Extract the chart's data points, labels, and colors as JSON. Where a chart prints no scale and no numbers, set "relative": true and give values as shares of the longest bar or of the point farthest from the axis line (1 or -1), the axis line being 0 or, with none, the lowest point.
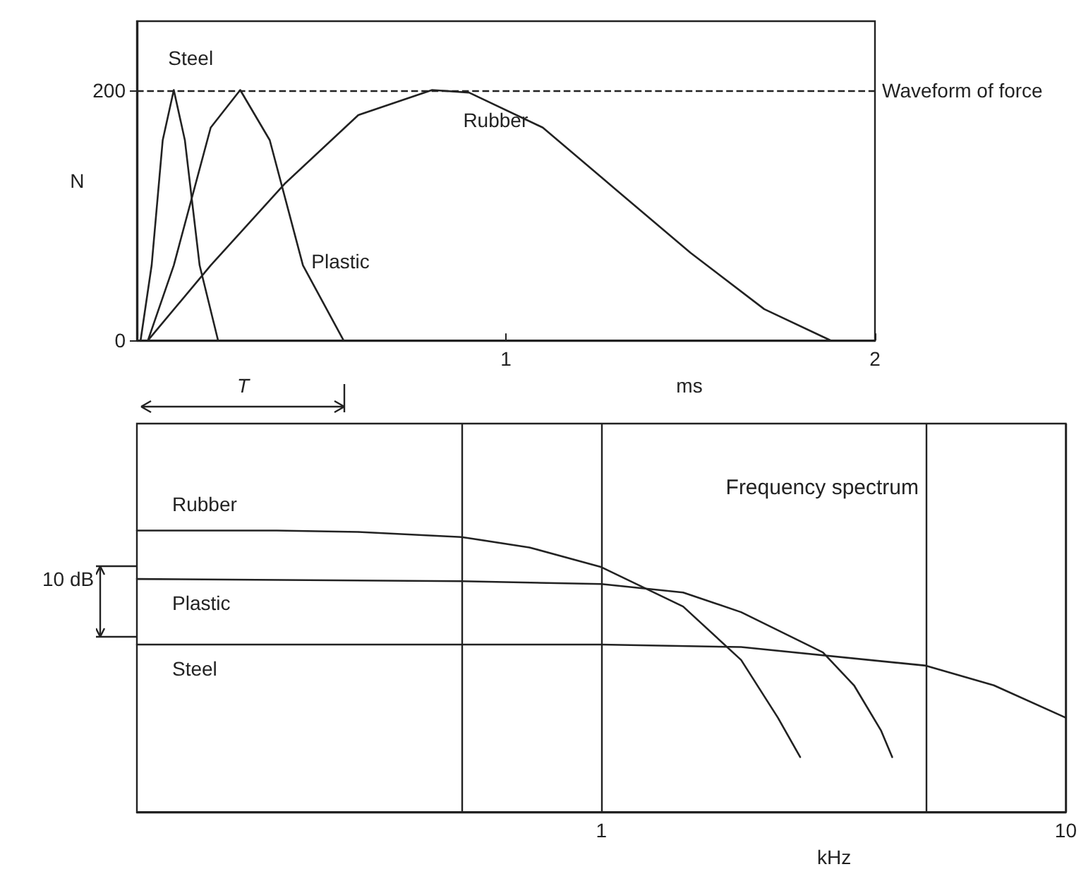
{
  "chart_data": [
    {
      "type": "line",
      "xlabel": "ms",
      "ylabel": "N",
      "xlim": [
        0,
        2
      ],
      "xticks": [
        {
          "value": 0,
          "label": null
        },
        1,
        2
      ],
      "ylim": [
        0,
        255
      ],
      "yticks": [
        0,
        200
      ],
      "marker": "none",
      "line_style": "solid",
      "ref_lines": [
        {
          "axis": "y",
          "value": 200,
          "label": "Waveform of force",
          "line_style": "dashed",
          "color": "#222222"
        }
      ],
      "annotations": [
        "T"
      ],
      "series": [
        {
          "name": "Steel",
          "color": "#222222",
          "x": [
            0.01,
            0.04,
            0.07,
            0.1,
            0.13,
            0.17,
            0.22
          ],
          "values": [
            0,
            60,
            160,
            200,
            160,
            60,
            0
          ]
        },
        {
          "name": "Plastic",
          "color": "#222222",
          "x": [
            0.03,
            0.1,
            0.2,
            0.28,
            0.36,
            0.45,
            0.56
          ],
          "values": [
            0,
            60,
            170,
            200,
            160,
            60,
            0
          ]
        },
        {
          "name": "Rubber",
          "color": "#222222",
          "x": [
            0.03,
            0.2,
            0.4,
            0.6,
            0.8,
            0.9,
            1.1,
            1.3,
            1.5,
            1.7,
            1.88
          ],
          "values": [
            0,
            60,
            125,
            180,
            200,
            198,
            170,
            120,
            70,
            25,
            0
          ]
        }
      ]
    },
    {
      "type": "line",
      "title": "Frequency spectrum",
      "xlabel": "kHz",
      "log": "x",
      "xlim": [
        0.1,
        10
      ],
      "xticks": [
        {
          "value": 0.5,
          "label": null
        },
        1,
        {
          "value": 5,
          "label": null
        },
        10
      ],
      "grid": "x",
      "relative": true,
      "marker": "none",
      "line_style": "solid",
      "annotations": [
        "10 dB"
      ],
      "series": [
        {
          "name": "Rubber",
          "color": "#222222",
          "x": [
            0.1,
            0.2,
            0.3,
            0.5,
            0.7,
            1,
            1.5,
            2,
            2.4,
            2.68
          ],
          "values": [
            1.0,
            1.0,
            0.995,
            0.977,
            0.94,
            0.87,
            0.73,
            0.54,
            0.335,
            0.195
          ]
        },
        {
          "name": "Plastic",
          "color": "#222222",
          "x": [
            0.1,
            0.5,
            1,
            1.5,
            2,
            3,
            3.5,
            4,
            4.23
          ],
          "values": [
            0.828,
            0.82,
            0.81,
            0.78,
            0.71,
            0.567,
            0.45,
            0.29,
            0.195
          ]
        },
        {
          "name": "Steel",
          "color": "#222222",
          "x": [
            0.1,
            1,
            2,
            5,
            7,
            10
          ],
          "values": [
            0.595,
            0.595,
            0.586,
            0.52,
            0.45,
            0.335
          ]
        }
      ]
    }
  ]
}
